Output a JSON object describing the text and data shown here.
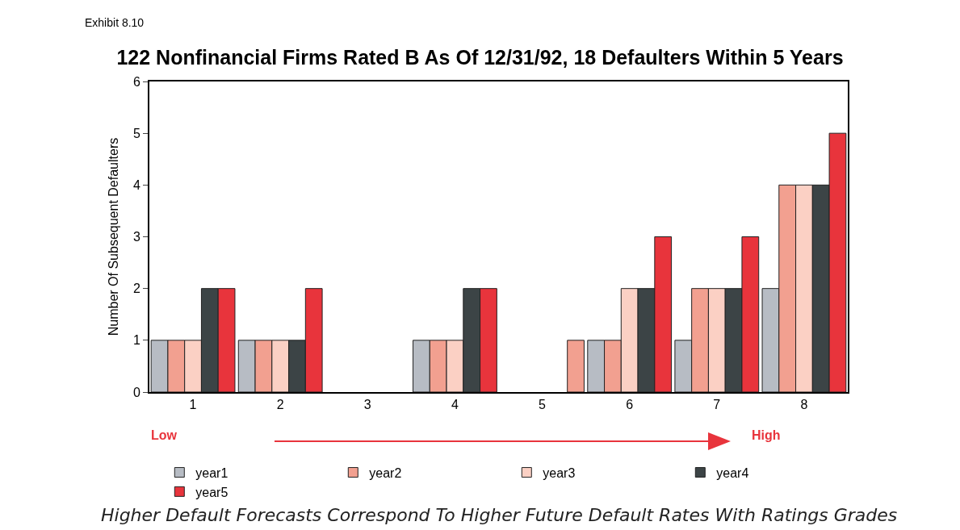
{
  "chart_data": {
    "type": "bar",
    "title": "122 Nonfinancial Firms Rated B As Of 12/31/92, 18 Defaulters Within 5 Years",
    "ylabel": "Number Of Subsequent Defaulters",
    "categories": [
      "1",
      "2",
      "3",
      "4",
      "5",
      "6",
      "7",
      "8"
    ],
    "series": [
      {
        "name": "year1",
        "color": "#b7bcc4",
        "values": [
          1,
          1,
          0,
          1,
          0,
          1,
          1,
          2
        ]
      },
      {
        "name": "year2",
        "color": "#f2a090",
        "values": [
          1,
          1,
          0,
          1,
          0,
          1,
          2,
          4
        ]
      },
      {
        "name": "year3",
        "color": "#fbd0c4",
        "values": [
          1,
          1,
          0,
          1,
          0,
          2,
          2,
          4
        ]
      },
      {
        "name": "year4",
        "color": "#3c4446",
        "values": [
          2,
          1,
          0,
          2,
          0,
          2,
          2,
          4
        ]
      },
      {
        "name": "year5",
        "color": "#e8343c",
        "colors": [
          null,
          null,
          null,
          null,
          "#f2a090",
          null,
          null,
          null
        ],
        "values": [
          2,
          2,
          0,
          2,
          1,
          3,
          3,
          5
        ]
      }
    ],
    "ylim": [
      0,
      6
    ],
    "yticks": [
      0,
      1,
      2,
      3,
      4,
      5,
      6
    ],
    "grid": false,
    "legend": "bottom",
    "annotations": [
      "Exhibit 8.10",
      "Low",
      "High",
      "Higher Default Forecasts Correspond To Higher Future Default Rates With Ratings Grades"
    ]
  }
}
